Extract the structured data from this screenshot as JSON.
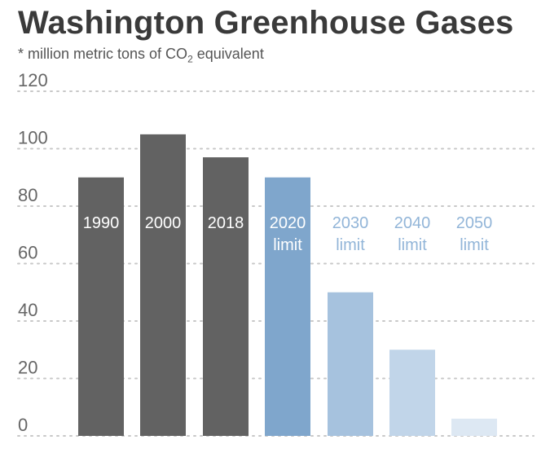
{
  "header": {
    "title": "Washington Greenhouse Gases",
    "subtitle_prefix": "* million metric tons of CO",
    "subtitle_sub": "2",
    "subtitle_suffix": " equivalent"
  },
  "chart_data": {
    "type": "bar",
    "title": "Washington Greenhouse Gases",
    "subtitle": "* million metric tons of CO2 equivalent",
    "xlabel": "",
    "ylabel": "",
    "ylim": [
      0,
      120
    ],
    "yticks": [
      0,
      20,
      40,
      60,
      80,
      100,
      120
    ],
    "grid": true,
    "categories": [
      "1990",
      "2000",
      "2018",
      "2020 limit",
      "2030 limit",
      "2040 limit",
      "2050 limit"
    ],
    "labels": [
      [
        "1990"
      ],
      [
        "2000"
      ],
      [
        "2018"
      ],
      [
        "2020",
        "limit"
      ],
      [
        "2030",
        "limit"
      ],
      [
        "2040",
        "limit"
      ],
      [
        "2050",
        "limit"
      ]
    ],
    "values": [
      90,
      105,
      97,
      90,
      50,
      30,
      6
    ],
    "colors": [
      "#626262",
      "#626262",
      "#626262",
      "#7fa6cc",
      "#a6c2de",
      "#c1d5e9",
      "#dde8f3"
    ],
    "label_colors": [
      "#ffffff",
      "#ffffff",
      "#ffffff",
      "#ffffff",
      "#92b5d8",
      "#92b5d8",
      "#92b5d8"
    ],
    "grid_color": "#c8c8c8"
  }
}
